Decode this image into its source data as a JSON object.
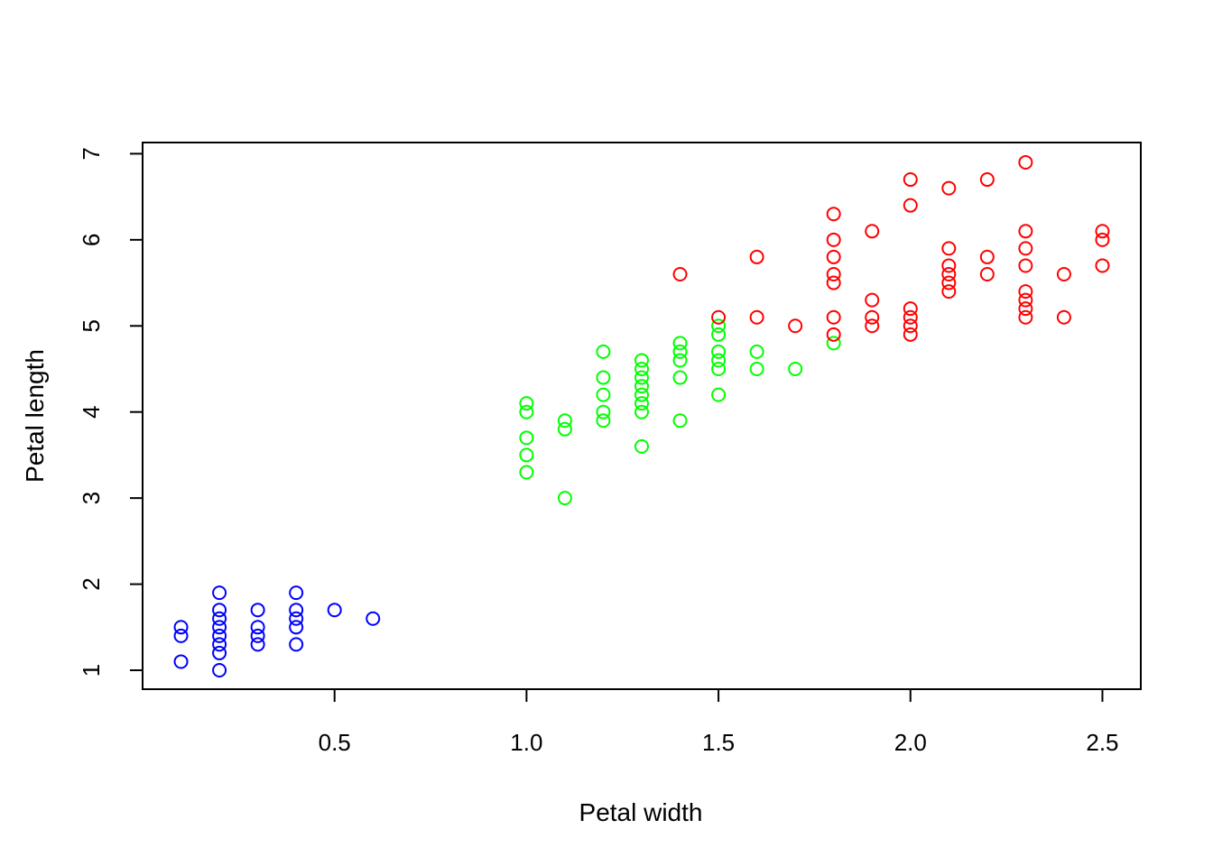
{
  "chart_data": {
    "type": "scatter",
    "xlabel": "Petal width",
    "ylabel": "Petal length",
    "xlim": [
      0.0,
      2.6
    ],
    "ylim": [
      0.78,
      7.13
    ],
    "x_ticks": [
      0.5,
      1.0,
      1.5,
      2.0,
      2.5
    ],
    "x_tick_labels": [
      "0.5",
      "1.0",
      "1.5",
      "2.0",
      "2.5"
    ],
    "y_ticks": [
      1,
      2,
      3,
      4,
      5,
      6,
      7
    ],
    "y_tick_labels": [
      "1",
      "2",
      "3",
      "4",
      "5",
      "6",
      "7"
    ],
    "grid": false,
    "series": [
      {
        "color": "#0000ff",
        "points": [
          [
            0.1,
            1.1
          ],
          [
            0.1,
            1.4
          ],
          [
            0.1,
            1.5
          ],
          [
            0.2,
            1.0
          ],
          [
            0.2,
            1.2
          ],
          [
            0.2,
            1.3
          ],
          [
            0.2,
            1.4
          ],
          [
            0.2,
            1.5
          ],
          [
            0.2,
            1.6
          ],
          [
            0.2,
            1.7
          ],
          [
            0.2,
            1.9
          ],
          [
            0.3,
            1.3
          ],
          [
            0.3,
            1.4
          ],
          [
            0.3,
            1.5
          ],
          [
            0.3,
            1.7
          ],
          [
            0.4,
            1.3
          ],
          [
            0.4,
            1.5
          ],
          [
            0.4,
            1.6
          ],
          [
            0.4,
            1.7
          ],
          [
            0.4,
            1.9
          ],
          [
            0.5,
            1.7
          ],
          [
            0.6,
            1.6
          ]
        ]
      },
      {
        "color": "#00ff00",
        "points": [
          [
            1.0,
            3.3
          ],
          [
            1.0,
            3.5
          ],
          [
            1.0,
            3.7
          ],
          [
            1.0,
            4.0
          ],
          [
            1.0,
            4.1
          ],
          [
            1.1,
            3.0
          ],
          [
            1.1,
            3.8
          ],
          [
            1.1,
            3.9
          ],
          [
            1.2,
            3.9
          ],
          [
            1.2,
            4.0
          ],
          [
            1.2,
            4.2
          ],
          [
            1.2,
            4.4
          ],
          [
            1.2,
            4.7
          ],
          [
            1.3,
            3.6
          ],
          [
            1.3,
            4.0
          ],
          [
            1.3,
            4.1
          ],
          [
            1.3,
            4.2
          ],
          [
            1.3,
            4.3
          ],
          [
            1.3,
            4.4
          ],
          [
            1.3,
            4.5
          ],
          [
            1.3,
            4.6
          ],
          [
            1.4,
            3.9
          ],
          [
            1.4,
            4.4
          ],
          [
            1.4,
            4.6
          ],
          [
            1.4,
            4.7
          ],
          [
            1.4,
            4.8
          ],
          [
            1.5,
            4.2
          ],
          [
            1.5,
            4.5
          ],
          [
            1.5,
            4.6
          ],
          [
            1.5,
            4.7
          ],
          [
            1.5,
            4.9
          ],
          [
            1.5,
            5.0
          ],
          [
            1.6,
            4.5
          ],
          [
            1.6,
            4.7
          ],
          [
            1.7,
            4.5
          ],
          [
            1.8,
            4.8
          ]
        ]
      },
      {
        "color": "#ff0000",
        "points": [
          [
            1.4,
            5.6
          ],
          [
            1.5,
            5.1
          ],
          [
            1.6,
            5.1
          ],
          [
            1.6,
            5.8
          ],
          [
            1.7,
            5.0
          ],
          [
            1.8,
            4.9
          ],
          [
            1.8,
            5.1
          ],
          [
            1.8,
            5.5
          ],
          [
            1.8,
            5.6
          ],
          [
            1.8,
            5.8
          ],
          [
            1.8,
            6.0
          ],
          [
            1.8,
            6.3
          ],
          [
            1.9,
            5.0
          ],
          [
            1.9,
            5.1
          ],
          [
            1.9,
            5.3
          ],
          [
            1.9,
            6.1
          ],
          [
            2.0,
            4.9
          ],
          [
            2.0,
            5.0
          ],
          [
            2.0,
            5.1
          ],
          [
            2.0,
            5.2
          ],
          [
            2.0,
            6.4
          ],
          [
            2.0,
            6.7
          ],
          [
            2.1,
            5.4
          ],
          [
            2.1,
            5.5
          ],
          [
            2.1,
            5.6
          ],
          [
            2.1,
            5.7
          ],
          [
            2.1,
            5.9
          ],
          [
            2.1,
            6.6
          ],
          [
            2.2,
            5.6
          ],
          [
            2.2,
            5.8
          ],
          [
            2.2,
            6.7
          ],
          [
            2.3,
            5.1
          ],
          [
            2.3,
            5.2
          ],
          [
            2.3,
            5.3
          ],
          [
            2.3,
            5.4
          ],
          [
            2.3,
            5.7
          ],
          [
            2.3,
            5.9
          ],
          [
            2.3,
            6.1
          ],
          [
            2.3,
            6.9
          ],
          [
            2.4,
            5.1
          ],
          [
            2.4,
            5.6
          ],
          [
            2.5,
            5.7
          ],
          [
            2.5,
            6.0
          ],
          [
            2.5,
            6.1
          ]
        ]
      }
    ]
  }
}
